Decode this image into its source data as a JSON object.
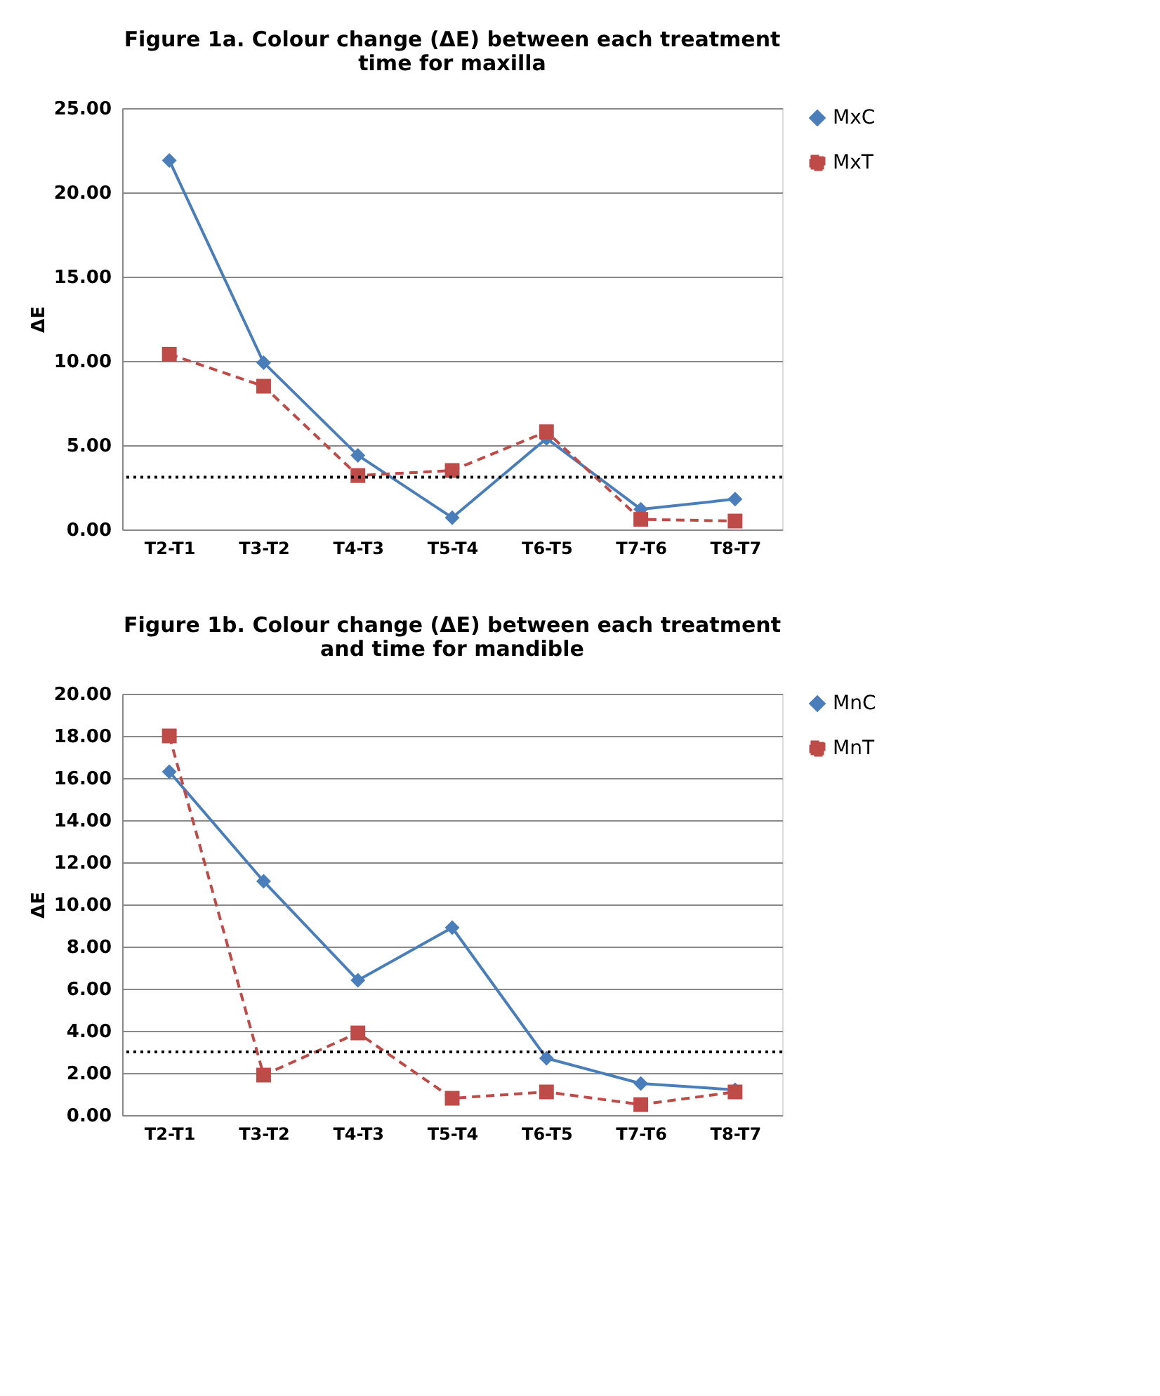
{
  "chart_data": [
    {
      "type": "line",
      "title": "Figure 1a. Colour change (ΔE) between each treatment time for maxilla",
      "ylabel": "ΔE",
      "categories": [
        "T2-T1",
        "T3-T2",
        "T4-T3",
        "T5-T4",
        "T6-T5",
        "T7-T6",
        "T8-T7"
      ],
      "series": [
        {
          "name": "MxC",
          "color": "#4a7ebb",
          "marker": "diamond",
          "line_style": "solid",
          "values": [
            21.9,
            9.9,
            4.4,
            0.7,
            5.4,
            1.2,
            1.8
          ]
        },
        {
          "name": "MxT",
          "color": "#be4b48",
          "marker": "square",
          "line_style": "dashed",
          "values": [
            10.4,
            8.5,
            3.2,
            3.5,
            5.8,
            0.6,
            0.5
          ]
        }
      ],
      "ylim": [
        0,
        25
      ],
      "yticks": [
        {
          "value": 0,
          "label": "0.00"
        },
        {
          "value": 5,
          "label": "5.00"
        },
        {
          "value": 10,
          "label": "10.00"
        },
        {
          "value": 15,
          "label": "15.00"
        },
        {
          "value": 20,
          "label": "20.00"
        },
        {
          "value": 25,
          "label": "25.00"
        }
      ],
      "ref_lines": [
        {
          "axis": "y",
          "value": 3.1,
          "color": "#000000",
          "line_style": "dotted"
        }
      ],
      "grid": "y",
      "legend": "right"
    },
    {
      "type": "line",
      "title": "Figure 1b. Colour change (ΔE) between each treatment and time for mandible",
      "ylabel": "ΔE",
      "categories": [
        "T2-T1",
        "T3-T2",
        "T4-T3",
        "T5-T4",
        "T6-T5",
        "T7-T6",
        "T8-T7"
      ],
      "series": [
        {
          "name": "MnC",
          "color": "#4a7ebb",
          "marker": "diamond",
          "line_style": "solid",
          "values": [
            16.3,
            11.1,
            6.4,
            8.9,
            2.7,
            1.5,
            1.2
          ]
        },
        {
          "name": "MnT",
          "color": "#be4b48",
          "marker": "square",
          "line_style": "dashed",
          "values": [
            18.0,
            1.9,
            3.9,
            0.8,
            1.1,
            0.5,
            1.1
          ]
        }
      ],
      "ylim": [
        0,
        20
      ],
      "yticks": [
        {
          "value": 0,
          "label": "0.00"
        },
        {
          "value": 2,
          "label": "2.00"
        },
        {
          "value": 4,
          "label": "4.00"
        },
        {
          "value": 6,
          "label": "6.00"
        },
        {
          "value": 8,
          "label": "8.00"
        },
        {
          "value": 10,
          "label": "10.00"
        },
        {
          "value": 12,
          "label": "12.00"
        },
        {
          "value": 14,
          "label": "14.00"
        },
        {
          "value": 16,
          "label": "16.00"
        },
        {
          "value": 18,
          "label": "18.00"
        },
        {
          "value": 20,
          "label": "20.00"
        }
      ],
      "ref_lines": [
        {
          "axis": "y",
          "value": 3.0,
          "color": "#000000",
          "line_style": "dotted"
        }
      ],
      "grid": "y",
      "legend": "right"
    }
  ]
}
